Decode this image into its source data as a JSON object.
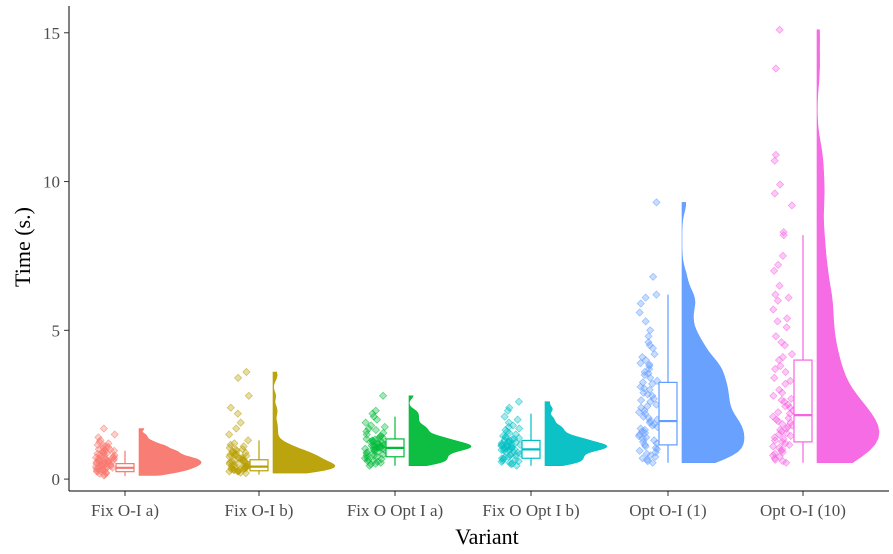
{
  "chart_data": {
    "type": "raincloud",
    "xlabel": "Variant",
    "ylabel": "Time (s.)",
    "ylim": [
      -0.4,
      15.9
    ],
    "yticks": [
      0,
      5,
      10,
      15
    ],
    "grid": false,
    "legend": "none",
    "categories": [
      "Fix O-I a)",
      "Fix O-I b)",
      "Fix O Opt I a)",
      "Fix O Opt I b)",
      "Opt O-I (1)",
      "Opt O-I (10)"
    ],
    "colors": [
      "#F8766D",
      "#B79F00",
      "#00BA38",
      "#00BFC4",
      "#619CFF",
      "#F564E3"
    ],
    "boxes": [
      {
        "min": 0.1,
        "q1": 0.25,
        "median": 0.38,
        "q3": 0.52,
        "max": 0.95
      },
      {
        "min": 0.15,
        "q1": 0.28,
        "median": 0.42,
        "q3": 0.65,
        "max": 1.3
      },
      {
        "min": 0.45,
        "q1": 0.75,
        "median": 1.05,
        "q3": 1.35,
        "max": 2.1
      },
      {
        "min": 0.45,
        "q1": 0.7,
        "median": 1.0,
        "q3": 1.3,
        "max": 2.2
      },
      {
        "min": 0.55,
        "q1": 1.15,
        "median": 1.95,
        "q3": 3.25,
        "max": 6.2
      },
      {
        "min": 0.55,
        "q1": 1.25,
        "median": 2.15,
        "q3": 4.0,
        "max": 8.2
      }
    ],
    "points": [
      [
        0.15,
        0.2,
        0.25,
        0.28,
        0.3,
        0.32,
        0.35,
        0.38,
        0.4,
        0.42,
        0.45,
        0.48,
        0.5,
        0.52,
        0.55,
        0.58,
        0.6,
        0.62,
        0.65,
        0.68,
        0.7,
        0.72,
        0.75,
        0.8,
        0.85,
        0.9,
        0.95,
        1.0,
        1.05,
        1.1,
        1.2,
        1.3,
        1.4,
        1.5,
        1.7,
        0.18,
        0.22,
        0.33,
        0.36,
        0.44,
        0.47,
        0.53,
        0.57,
        0.63,
        0.67,
        0.73,
        0.78,
        0.83,
        0.88,
        0.93,
        0.98,
        1.08,
        1.15,
        1.25,
        0.12,
        0.27,
        0.41,
        0.49,
        0.56,
        0.61,
        0.69,
        0.77,
        0.86,
        0.97,
        1.12
      ],
      [
        0.2,
        0.25,
        0.28,
        0.3,
        0.32,
        0.35,
        0.38,
        0.4,
        0.42,
        0.45,
        0.48,
        0.5,
        0.55,
        0.6,
        0.65,
        0.7,
        0.75,
        0.8,
        0.85,
        0.9,
        0.95,
        1.0,
        1.1,
        1.2,
        1.3,
        1.5,
        1.7,
        1.9,
        2.2,
        2.4,
        2.8,
        3.4,
        3.6,
        0.22,
        0.27,
        0.33,
        0.37,
        0.43,
        0.47,
        0.52,
        0.58,
        0.62,
        0.68,
        0.72,
        0.78,
        0.83,
        0.88,
        0.93,
        1.05,
        1.15,
        0.26,
        0.31,
        0.36,
        0.41,
        0.46,
        0.51,
        0.57,
        0.64,
        0.71,
        0.82,
        0.98
      ],
      [
        0.45,
        0.5,
        0.55,
        0.6,
        0.65,
        0.7,
        0.75,
        0.8,
        0.85,
        0.9,
        0.95,
        1.0,
        1.02,
        1.05,
        1.08,
        1.1,
        1.12,
        1.15,
        1.18,
        1.2,
        1.25,
        1.3,
        1.35,
        1.4,
        1.5,
        1.6,
        1.7,
        1.8,
        1.9,
        2.0,
        2.1,
        2.2,
        2.3,
        2.8,
        0.52,
        0.62,
        0.72,
        0.82,
        0.92,
        0.97,
        1.03,
        1.07,
        1.13,
        1.17,
        1.22,
        1.28,
        1.33,
        1.38,
        1.45,
        1.55,
        1.65,
        1.75,
        0.58,
        0.68,
        0.78,
        0.88,
        0.98,
        1.06,
        1.16,
        1.26,
        1.42
      ],
      [
        0.45,
        0.5,
        0.55,
        0.6,
        0.65,
        0.7,
        0.75,
        0.8,
        0.85,
        0.9,
        0.95,
        1.0,
        1.02,
        1.05,
        1.08,
        1.1,
        1.12,
        1.15,
        1.18,
        1.2,
        1.25,
        1.3,
        1.35,
        1.4,
        1.5,
        1.6,
        1.7,
        1.8,
        1.9,
        2.0,
        2.1,
        2.3,
        2.4,
        2.6,
        0.52,
        0.62,
        0.72,
        0.82,
        0.92,
        0.97,
        1.03,
        1.07,
        1.13,
        1.17,
        1.22,
        1.28,
        1.33,
        1.38,
        1.45,
        1.55,
        1.65,
        1.75,
        0.58,
        0.68,
        0.78,
        0.88,
        0.98,
        1.06,
        1.16,
        1.26,
        1.42
      ],
      [
        0.55,
        0.6,
        0.7,
        0.8,
        0.9,
        1.0,
        1.1,
        1.2,
        1.3,
        1.4,
        1.5,
        1.6,
        1.7,
        1.8,
        1.9,
        2.0,
        2.1,
        2.2,
        2.3,
        2.4,
        2.5,
        2.6,
        2.7,
        2.8,
        2.9,
        3.0,
        3.1,
        3.2,
        3.3,
        3.4,
        3.5,
        3.6,
        3.7,
        3.8,
        3.9,
        4.0,
        4.2,
        4.4,
        4.6,
        4.8,
        5.0,
        5.3,
        5.6,
        5.9,
        6.1,
        6.2,
        6.8,
        9.3,
        0.65,
        0.75,
        0.85,
        0.95,
        1.05,
        1.15,
        1.25,
        1.35,
        1.45,
        1.55,
        1.65,
        1.75,
        1.85,
        1.95,
        2.05,
        2.25,
        2.45,
        2.65,
        2.85,
        3.05,
        3.25,
        3.55,
        3.85,
        4.1,
        4.5
      ],
      [
        0.55,
        0.6,
        0.7,
        0.8,
        0.9,
        1.0,
        1.1,
        1.2,
        1.3,
        1.4,
        1.5,
        1.6,
        1.7,
        1.8,
        1.9,
        2.0,
        2.1,
        2.2,
        2.3,
        2.4,
        2.5,
        2.6,
        2.7,
        2.8,
        3.0,
        3.2,
        3.4,
        3.6,
        3.8,
        4.0,
        4.2,
        4.5,
        4.8,
        5.1,
        5.4,
        5.7,
        6.0,
        6.2,
        6.5,
        7.0,
        7.2,
        7.5,
        8.2,
        8.3,
        9.2,
        9.6,
        9.9,
        10.7,
        10.9,
        13.8,
        15.1,
        0.65,
        0.75,
        0.85,
        0.95,
        1.05,
        1.15,
        1.25,
        1.35,
        1.45,
        1.55,
        1.65,
        1.75,
        1.85,
        1.95,
        2.05,
        2.25,
        2.45,
        2.65,
        2.9,
        3.3,
        3.7,
        4.1,
        4.6,
        5.3,
        6.1
      ]
    ]
  }
}
